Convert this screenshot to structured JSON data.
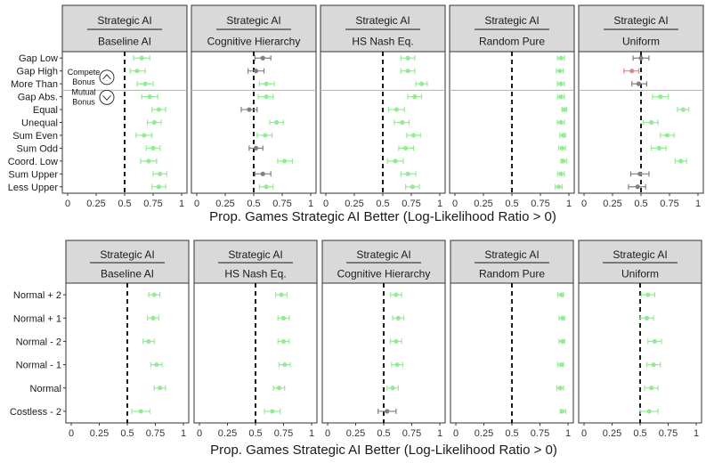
{
  "colors": {
    "significant_better": "#90ee90",
    "not_significant": "#808080",
    "significant_worse": "#f08080"
  },
  "top": {
    "categories": [
      "Gap Low",
      "Gap High",
      "More Than",
      "Gap Abs.",
      "Equal",
      "Unequal",
      "Sum Even",
      "Sum Odd",
      "Coord. Low",
      "Sum Upper",
      "Less Upper"
    ],
    "divider_after_index": 2,
    "annotations": [
      {
        "label": "Compete\nBonus",
        "icon": "chevron-up-icon"
      },
      {
        "label": "Mutual\nBonus",
        "icon": "chevron-down-icon"
      }
    ],
    "panels": [
      {
        "strip_top": "Strategic AI",
        "strip_bottom": "Baseline AI",
        "points": [
          {
            "est": 0.65,
            "lo": 0.58,
            "hi": 0.72,
            "status": "better"
          },
          {
            "est": 0.61,
            "lo": 0.55,
            "hi": 0.68,
            "status": "better"
          },
          {
            "est": 0.68,
            "lo": 0.61,
            "hi": 0.75,
            "status": "better"
          },
          {
            "est": 0.72,
            "lo": 0.65,
            "hi": 0.79,
            "status": "better"
          },
          {
            "est": 0.8,
            "lo": 0.74,
            "hi": 0.86,
            "status": "better"
          },
          {
            "est": 0.76,
            "lo": 0.7,
            "hi": 0.82,
            "status": "better"
          },
          {
            "est": 0.67,
            "lo": 0.6,
            "hi": 0.74,
            "status": "better"
          },
          {
            "est": 0.75,
            "lo": 0.69,
            "hi": 0.81,
            "status": "better"
          },
          {
            "est": 0.71,
            "lo": 0.64,
            "hi": 0.78,
            "status": "better"
          },
          {
            "est": 0.81,
            "lo": 0.75,
            "hi": 0.87,
            "status": "better"
          },
          {
            "est": 0.8,
            "lo": 0.74,
            "hi": 0.86,
            "status": "better"
          }
        ]
      },
      {
        "strip_top": "Strategic AI",
        "strip_bottom": "Cognitive Hierarchy",
        "points": [
          {
            "est": 0.58,
            "lo": 0.51,
            "hi": 0.65,
            "status": "ns"
          },
          {
            "est": 0.52,
            "lo": 0.45,
            "hi": 0.59,
            "status": "ns"
          },
          {
            "est": 0.61,
            "lo": 0.55,
            "hi": 0.68,
            "status": "better"
          },
          {
            "est": 0.61,
            "lo": 0.54,
            "hi": 0.67,
            "status": "better"
          },
          {
            "est": 0.46,
            "lo": 0.39,
            "hi": 0.53,
            "status": "ns"
          },
          {
            "est": 0.7,
            "lo": 0.64,
            "hi": 0.76,
            "status": "better"
          },
          {
            "est": 0.6,
            "lo": 0.53,
            "hi": 0.66,
            "status": "better"
          },
          {
            "est": 0.52,
            "lo": 0.46,
            "hi": 0.58,
            "status": "ns"
          },
          {
            "est": 0.77,
            "lo": 0.71,
            "hi": 0.84,
            "status": "better"
          },
          {
            "est": 0.58,
            "lo": 0.51,
            "hi": 0.65,
            "status": "ns"
          },
          {
            "est": 0.61,
            "lo": 0.55,
            "hi": 0.67,
            "status": "better"
          }
        ]
      },
      {
        "strip_top": "Strategic AI",
        "strip_bottom": "HS Nash Eq.",
        "points": [
          {
            "est": 0.72,
            "lo": 0.66,
            "hi": 0.78,
            "status": "better"
          },
          {
            "est": 0.72,
            "lo": 0.66,
            "hi": 0.78,
            "status": "better"
          },
          {
            "est": 0.84,
            "lo": 0.79,
            "hi": 0.89,
            "status": "better"
          },
          {
            "est": 0.78,
            "lo": 0.72,
            "hi": 0.84,
            "status": "better"
          },
          {
            "est": 0.62,
            "lo": 0.55,
            "hi": 0.69,
            "status": "better"
          },
          {
            "est": 0.67,
            "lo": 0.6,
            "hi": 0.73,
            "status": "better"
          },
          {
            "est": 0.77,
            "lo": 0.71,
            "hi": 0.83,
            "status": "better"
          },
          {
            "est": 0.7,
            "lo": 0.64,
            "hi": 0.77,
            "status": "better"
          },
          {
            "est": 0.61,
            "lo": 0.54,
            "hi": 0.68,
            "status": "better"
          },
          {
            "est": 0.72,
            "lo": 0.66,
            "hi": 0.79,
            "status": "better"
          },
          {
            "est": 0.76,
            "lo": 0.7,
            "hi": 0.82,
            "status": "better"
          }
        ]
      },
      {
        "strip_top": "Strategic AI",
        "strip_bottom": "Random Pure",
        "points": [
          {
            "est": 0.93,
            "lo": 0.9,
            "hi": 0.96,
            "status": "better"
          },
          {
            "est": 0.92,
            "lo": 0.89,
            "hi": 0.95,
            "status": "better"
          },
          {
            "est": 0.93,
            "lo": 0.9,
            "hi": 0.96,
            "status": "better"
          },
          {
            "est": 0.93,
            "lo": 0.9,
            "hi": 0.96,
            "status": "better"
          },
          {
            "est": 0.96,
            "lo": 0.94,
            "hi": 0.98,
            "status": "better"
          },
          {
            "est": 0.93,
            "lo": 0.9,
            "hi": 0.96,
            "status": "better"
          },
          {
            "est": 0.95,
            "lo": 0.92,
            "hi": 0.97,
            "status": "better"
          },
          {
            "est": 0.94,
            "lo": 0.91,
            "hi": 0.97,
            "status": "better"
          },
          {
            "est": 0.95,
            "lo": 0.93,
            "hi": 0.98,
            "status": "better"
          },
          {
            "est": 0.93,
            "lo": 0.9,
            "hi": 0.96,
            "status": "better"
          },
          {
            "est": 0.91,
            "lo": 0.88,
            "hi": 0.94,
            "status": "better"
          }
        ]
      },
      {
        "strip_top": "Strategic AI",
        "strip_bottom": "Uniform",
        "points": [
          {
            "est": 0.5,
            "lo": 0.43,
            "hi": 0.57,
            "status": "ns"
          },
          {
            "est": 0.42,
            "lo": 0.35,
            "hi": 0.48,
            "status": "worse"
          },
          {
            "est": 0.48,
            "lo": 0.42,
            "hi": 0.55,
            "status": "ns"
          },
          {
            "est": 0.67,
            "lo": 0.6,
            "hi": 0.74,
            "status": "better"
          },
          {
            "est": 0.87,
            "lo": 0.82,
            "hi": 0.92,
            "status": "better"
          },
          {
            "est": 0.59,
            "lo": 0.52,
            "hi": 0.65,
            "status": "better"
          },
          {
            "est": 0.73,
            "lo": 0.67,
            "hi": 0.79,
            "status": "better"
          },
          {
            "est": 0.66,
            "lo": 0.59,
            "hi": 0.72,
            "status": "better"
          },
          {
            "est": 0.85,
            "lo": 0.8,
            "hi": 0.9,
            "status": "better"
          },
          {
            "est": 0.49,
            "lo": 0.41,
            "hi": 0.57,
            "status": "ns"
          },
          {
            "est": 0.47,
            "lo": 0.39,
            "hi": 0.54,
            "status": "ns"
          }
        ]
      }
    ]
  },
  "bottom": {
    "categories": [
      "Normal + 2",
      "Normal + 1",
      "Normal - 2",
      "Normal - 1",
      "Normal",
      "Costless - 2"
    ],
    "panels": [
      {
        "strip_top": "Strategic AI",
        "strip_bottom": "Baseline AI",
        "points": [
          {
            "est": 0.74,
            "lo": 0.69,
            "hi": 0.79,
            "status": "better"
          },
          {
            "est": 0.73,
            "lo": 0.68,
            "hi": 0.78,
            "status": "better"
          },
          {
            "est": 0.69,
            "lo": 0.64,
            "hi": 0.74,
            "status": "better"
          },
          {
            "est": 0.76,
            "lo": 0.71,
            "hi": 0.81,
            "status": "better"
          },
          {
            "est": 0.79,
            "lo": 0.74,
            "hi": 0.84,
            "status": "better"
          },
          {
            "est": 0.62,
            "lo": 0.54,
            "hi": 0.7,
            "status": "better"
          }
        ]
      },
      {
        "strip_top": "Strategic AI",
        "strip_bottom": "HS Nash Eq.",
        "points": [
          {
            "est": 0.73,
            "lo": 0.68,
            "hi": 0.78,
            "status": "better"
          },
          {
            "est": 0.75,
            "lo": 0.7,
            "hi": 0.8,
            "status": "better"
          },
          {
            "est": 0.75,
            "lo": 0.7,
            "hi": 0.8,
            "status": "better"
          },
          {
            "est": 0.76,
            "lo": 0.71,
            "hi": 0.81,
            "status": "better"
          },
          {
            "est": 0.71,
            "lo": 0.66,
            "hi": 0.76,
            "status": "better"
          },
          {
            "est": 0.65,
            "lo": 0.58,
            "hi": 0.72,
            "status": "better"
          }
        ]
      },
      {
        "strip_top": "Strategic AI",
        "strip_bottom": "Cognitive Hierarchy",
        "points": [
          {
            "est": 0.61,
            "lo": 0.56,
            "hi": 0.66,
            "status": "better"
          },
          {
            "est": 0.63,
            "lo": 0.58,
            "hi": 0.68,
            "status": "better"
          },
          {
            "est": 0.61,
            "lo": 0.56,
            "hi": 0.66,
            "status": "better"
          },
          {
            "est": 0.62,
            "lo": 0.57,
            "hi": 0.67,
            "status": "better"
          },
          {
            "est": 0.58,
            "lo": 0.53,
            "hi": 0.63,
            "status": "better"
          },
          {
            "est": 0.53,
            "lo": 0.45,
            "hi": 0.61,
            "status": "ns"
          }
        ]
      },
      {
        "strip_top": "Strategic AI",
        "strip_bottom": "Random Pure",
        "points": [
          {
            "est": 0.94,
            "lo": 0.91,
            "hi": 0.96,
            "status": "better"
          },
          {
            "est": 0.95,
            "lo": 0.92,
            "hi": 0.97,
            "status": "better"
          },
          {
            "est": 0.95,
            "lo": 0.92,
            "hi": 0.97,
            "status": "better"
          },
          {
            "est": 0.94,
            "lo": 0.91,
            "hi": 0.96,
            "status": "better"
          },
          {
            "est": 0.93,
            "lo": 0.9,
            "hi": 0.96,
            "status": "better"
          },
          {
            "est": 0.95,
            "lo": 0.93,
            "hi": 0.98,
            "status": "better"
          }
        ]
      },
      {
        "strip_top": "Strategic AI",
        "strip_bottom": "Uniform",
        "points": [
          {
            "est": 0.57,
            "lo": 0.51,
            "hi": 0.63,
            "status": "better"
          },
          {
            "est": 0.56,
            "lo": 0.5,
            "hi": 0.62,
            "status": "better"
          },
          {
            "est": 0.63,
            "lo": 0.57,
            "hi": 0.69,
            "status": "better"
          },
          {
            "est": 0.62,
            "lo": 0.56,
            "hi": 0.68,
            "status": "better"
          },
          {
            "est": 0.6,
            "lo": 0.54,
            "hi": 0.66,
            "status": "better"
          },
          {
            "est": 0.58,
            "lo": 0.5,
            "hi": 0.66,
            "status": "better"
          }
        ]
      }
    ]
  },
  "chart_data": [
    {
      "type": "scatter",
      "xlabel": "Prop. Games Strategic AI Better (Log-Likelihood Ratio > 0)",
      "xlim": [
        0,
        1
      ],
      "xticks": [
        "0",
        "0.25",
        "0.5",
        "0.75",
        "1"
      ],
      "reference_line": 0.5,
      "facets": [
        "Baseline AI",
        "Cognitive Hierarchy",
        "HS Nash Eq.",
        "Random Pure",
        "Uniform"
      ],
      "categories": [
        "Gap Low",
        "Gap High",
        "More Than",
        "Gap Abs.",
        "Equal",
        "Unequal",
        "Sum Even",
        "Sum Odd",
        "Coord. Low",
        "Sum Upper",
        "Less Upper"
      ]
    },
    {
      "type": "scatter",
      "xlabel": "Prop. Games Strategic AI Better (Log-Likelihood Ratio > 0)",
      "xlim": [
        0,
        1
      ],
      "xticks": [
        "0",
        "0.25",
        "0.5",
        "0.75",
        "1"
      ],
      "reference_line": 0.5,
      "facets": [
        "Baseline AI",
        "HS Nash Eq.",
        "Cognitive Hierarchy",
        "Random Pure",
        "Uniform"
      ],
      "categories": [
        "Normal + 2",
        "Normal + 1",
        "Normal - 2",
        "Normal - 1",
        "Normal",
        "Costless - 2"
      ]
    }
  ],
  "axis": {
    "xlabel": "Prop. Games Strategic AI Better (Log-Likelihood Ratio > 0)",
    "ticks": [
      "0",
      "0.25",
      "0.5",
      "0.75",
      "1"
    ],
    "tick_values": [
      0,
      0.25,
      0.5,
      0.75,
      1
    ]
  }
}
